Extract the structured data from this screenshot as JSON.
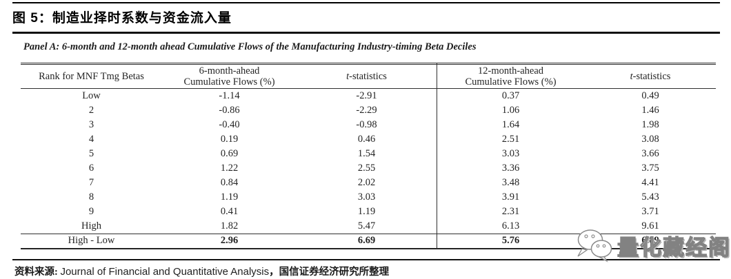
{
  "figure": {
    "title": "图 5：制造业择时系数与资金流入量",
    "panel_caption": "Panel A: 6-month and 12-month ahead Cumulative Flows of the Manufacturing Industry-timing Beta Deciles"
  },
  "table": {
    "headers": {
      "rank": "Rank for MNF Tmg Betas",
      "col6m_line1": "6-month-ahead",
      "col6m_line2": "Cumulative Flows (%)",
      "tstat_prefix": "t",
      "tstat_rest": "-statistics",
      "col12m_line1": "12-month-ahead",
      "col12m_line2": "Cumulative Flows (%)"
    },
    "rows": [
      [
        "Low",
        "-1.14",
        "-2.91",
        "0.37",
        "0.49"
      ],
      [
        "2",
        "-0.86",
        "-2.29",
        "1.06",
        "1.46"
      ],
      [
        "3",
        "-0.40",
        "-0.98",
        "1.64",
        "1.98"
      ],
      [
        "4",
        "0.19",
        "0.46",
        "2.51",
        "3.08"
      ],
      [
        "5",
        "0.69",
        "1.54",
        "3.03",
        "3.66"
      ],
      [
        "6",
        "1.22",
        "2.55",
        "3.36",
        "3.75"
      ],
      [
        "7",
        "0.84",
        "2.02",
        "3.48",
        "4.41"
      ],
      [
        "8",
        "1.19",
        "3.03",
        "3.91",
        "5.43"
      ],
      [
        "9",
        "0.41",
        "1.19",
        "2.31",
        "3.71"
      ],
      [
        "High",
        "1.82",
        "5.47",
        "6.13",
        "9.61"
      ]
    ],
    "summary": {
      "label": "High - Low",
      "values": [
        "2.96",
        "6.69",
        "5.76",
        "6.89"
      ]
    }
  },
  "source": {
    "prefix": "资料来源: ",
    "journal": "Journal of Financial and Quantitative Analysis",
    "suffix": "，国信证券经济研究所整理"
  },
  "watermark": {
    "text": "量化藏经阁",
    "icon": "wechat-bubbles-icon"
  },
  "colors": {
    "rule": "#000000",
    "table_line": "#2e2e2e",
    "text": "#242424",
    "watermark_outline": "#828282"
  }
}
